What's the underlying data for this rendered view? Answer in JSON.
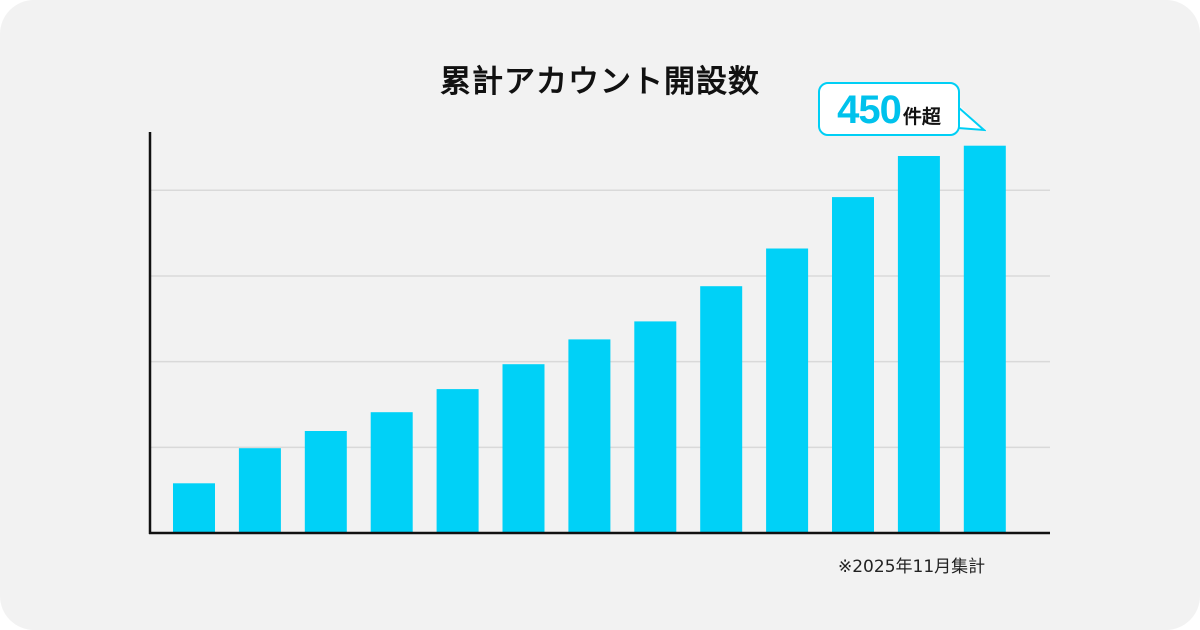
{
  "chart_data": {
    "type": "bar",
    "title": "累計アカウント開設数",
    "categories": [
      "",
      "",
      "",
      "",
      "",
      "",
      "",
      "",
      "",
      "",
      "",
      "",
      ""
    ],
    "values": [
      58,
      99,
      119,
      141,
      168,
      197,
      226,
      247,
      288,
      332,
      392,
      440,
      452
    ],
    "ylim": [
      0,
      468
    ],
    "yticks": [
      0,
      100,
      200,
      300,
      400
    ],
    "grid": true,
    "xlabel": "",
    "ylabel": "",
    "annotation": {
      "value": "450",
      "unit": "件超"
    },
    "footnote": "※2025年11月集計",
    "bar_color": "#00d1f7",
    "grid_color": "#d9d9d9",
    "axis_color": "#111111"
  }
}
